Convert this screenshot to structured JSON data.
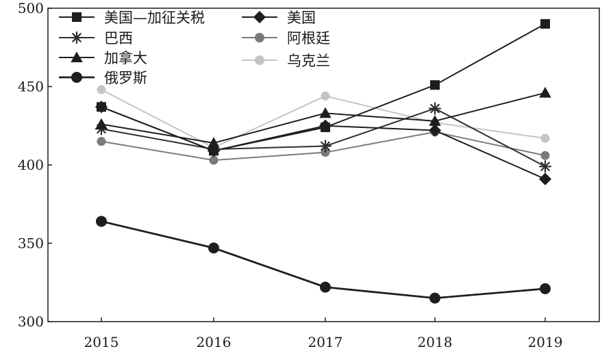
{
  "chart_data": {
    "type": "line",
    "title": "",
    "xlabel": "",
    "ylabel": "",
    "categories": [
      "2015",
      "2016",
      "2017",
      "2018",
      "2019"
    ],
    "ylim": [
      300,
      500
    ],
    "yticks": [
      300,
      350,
      400,
      450,
      500
    ],
    "grid": false,
    "legend_position": "top-left",
    "series": [
      {
        "name": "美国—加征关税",
        "marker": "square",
        "color": "#1e1e1e",
        "values": [
          437,
          409,
          424,
          451,
          490
        ]
      },
      {
        "name": "美国",
        "marker": "diamond",
        "color": "#1e1e1e",
        "values": [
          437,
          409,
          425,
          422,
          391
        ]
      },
      {
        "name": "巴西",
        "marker": "asterisk",
        "color": "#2e2e2e",
        "values": [
          423,
          410,
          412,
          436,
          399
        ]
      },
      {
        "name": "阿根廷",
        "marker": "circle",
        "color": "#7a7a7a",
        "values": [
          415,
          403,
          408,
          421,
          406
        ]
      },
      {
        "name": "加拿大",
        "marker": "triangle",
        "color": "#1e1e1e",
        "values": [
          426,
          414,
          433,
          428,
          446
        ]
      },
      {
        "name": "乌克兰",
        "marker": "circle",
        "color": "#c4c4c4",
        "values": [
          448,
          411,
          444,
          427,
          417
        ]
      },
      {
        "name": "俄罗斯",
        "marker": "circle",
        "color": "#1e1e1e",
        "values": [
          364,
          347,
          322,
          315,
          321
        ]
      }
    ]
  }
}
